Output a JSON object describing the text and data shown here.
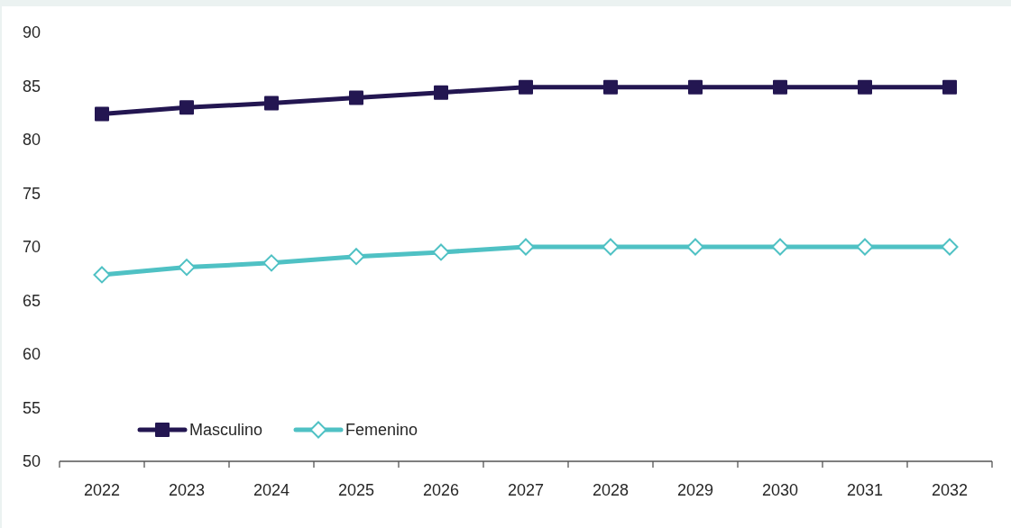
{
  "chart_data": {
    "type": "line",
    "categories": [
      "2022",
      "2023",
      "2024",
      "2025",
      "2026",
      "2027",
      "2028",
      "2029",
      "2030",
      "2031",
      "2032"
    ],
    "series": [
      {
        "name": "Masculino",
        "color": "#231651",
        "marker": "square",
        "values": [
          82.4,
          83.0,
          83.4,
          83.9,
          84.4,
          84.9,
          84.9,
          84.9,
          84.9,
          84.9,
          84.9
        ]
      },
      {
        "name": "Femenino",
        "color": "#4fc1c4",
        "marker": "diamond",
        "values": [
          67.4,
          68.1,
          68.5,
          69.1,
          69.5,
          70.0,
          70.0,
          70.0,
          70.0,
          70.0,
          70.0
        ]
      }
    ],
    "ylim": [
      50,
      90
    ],
    "yticks": [
      50,
      55,
      60,
      65,
      70,
      75,
      80,
      85,
      90
    ],
    "legend": "bottom left"
  }
}
